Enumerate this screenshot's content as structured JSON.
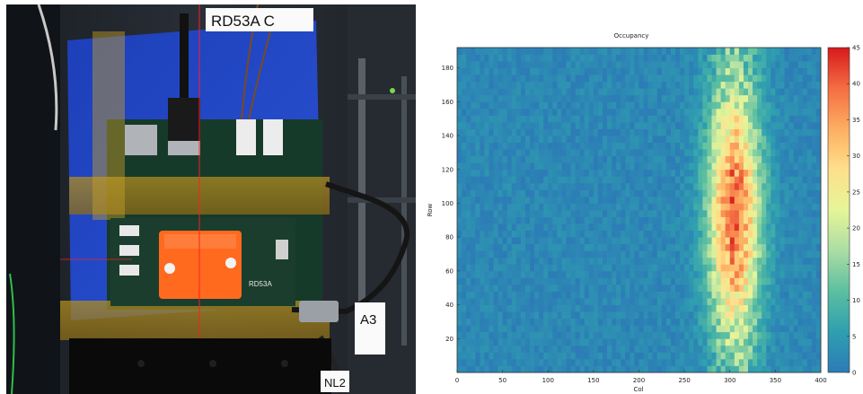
{
  "photo": {
    "labels": {
      "cable_tag": "RD53A C",
      "board_marking": "RD53A",
      "right_cable_tag": "A3",
      "bottom_tag": "NL2"
    }
  },
  "chart_data": {
    "type": "heatmap",
    "title": "Occupancy",
    "xlabel": "Col",
    "ylabel": "Row",
    "xlim": [
      0,
      400
    ],
    "ylim": [
      0,
      192
    ],
    "x_ticks": [
      0,
      50,
      100,
      150,
      200,
      250,
      300,
      350,
      400
    ],
    "y_ticks": [
      20,
      40,
      60,
      80,
      100,
      120,
      140,
      160,
      180
    ],
    "colorbar": {
      "range": [
        0,
        45
      ],
      "ticks": [
        0,
        5,
        10,
        15,
        20,
        25,
        30,
        35,
        40,
        45
      ],
      "colors": [
        "#2c7bb6",
        "#2f9fb0",
        "#5cbfa0",
        "#abdda4",
        "#e6f598",
        "#fee08b",
        "#fdae61",
        "#f46d43",
        "#d7191c"
      ]
    },
    "distribution": {
      "background_level": 2,
      "hotspot_center_col": 305,
      "hotspot_center_row": 95,
      "hotspot_peak": 40,
      "band_cols": [
        255,
        355
      ]
    },
    "grid": false
  }
}
